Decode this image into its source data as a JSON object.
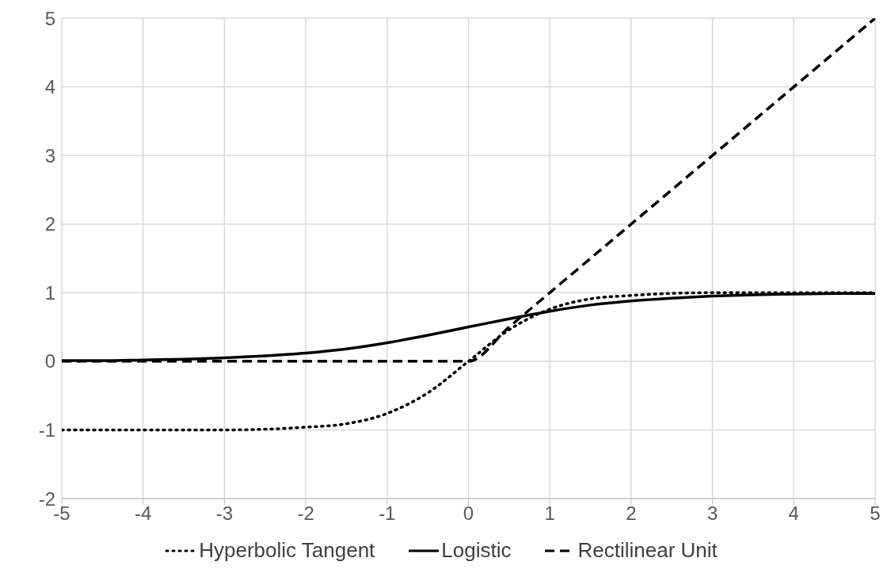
{
  "chart_data": {
    "type": "line",
    "x": [
      -5,
      -4.5,
      -4,
      -3.5,
      -3,
      -2.5,
      -2,
      -1.5,
      -1,
      -0.5,
      0,
      0.5,
      1,
      1.5,
      2,
      2.5,
      3,
      3.5,
      4,
      4.5,
      5
    ],
    "series": [
      {
        "name": "Hyperbolic Tangent",
        "color": "#000000",
        "line_style": "dotted",
        "values": [
          -1.0,
          -1.0,
          -1.0,
          -1.0,
          -1.0,
          -0.99,
          -0.96,
          -0.91,
          -0.76,
          -0.46,
          0,
          0.46,
          0.76,
          0.91,
          0.96,
          0.99,
          1.0,
          1.0,
          1.0,
          1.0,
          1.0
        ]
      },
      {
        "name": "Logistic",
        "color": "#000000",
        "line_style": "solid",
        "values": [
          0.01,
          0.01,
          0.02,
          0.03,
          0.05,
          0.08,
          0.12,
          0.18,
          0.27,
          0.38,
          0.5,
          0.62,
          0.73,
          0.82,
          0.88,
          0.92,
          0.95,
          0.97,
          0.98,
          0.99,
          0.99
        ]
      },
      {
        "name": "Rectilinear Unit",
        "color": "#000000",
        "line_style": "dashed",
        "values": [
          0,
          0,
          0,
          0,
          0,
          0,
          0,
          0,
          0,
          0,
          0,
          0.5,
          1,
          1.5,
          2,
          2.5,
          3,
          3.5,
          4,
          4.5,
          5
        ]
      }
    ],
    "xlim": [
      -5,
      5
    ],
    "xticks": [
      -5,
      -4,
      -3,
      -2,
      -1,
      0,
      1,
      2,
      3,
      4,
      5
    ],
    "ylim": [
      -2,
      5
    ],
    "yticks": [
      -2,
      -1,
      0,
      1,
      2,
      3,
      4,
      5
    ],
    "grid": true,
    "legend": "bottom",
    "marker": "none"
  }
}
